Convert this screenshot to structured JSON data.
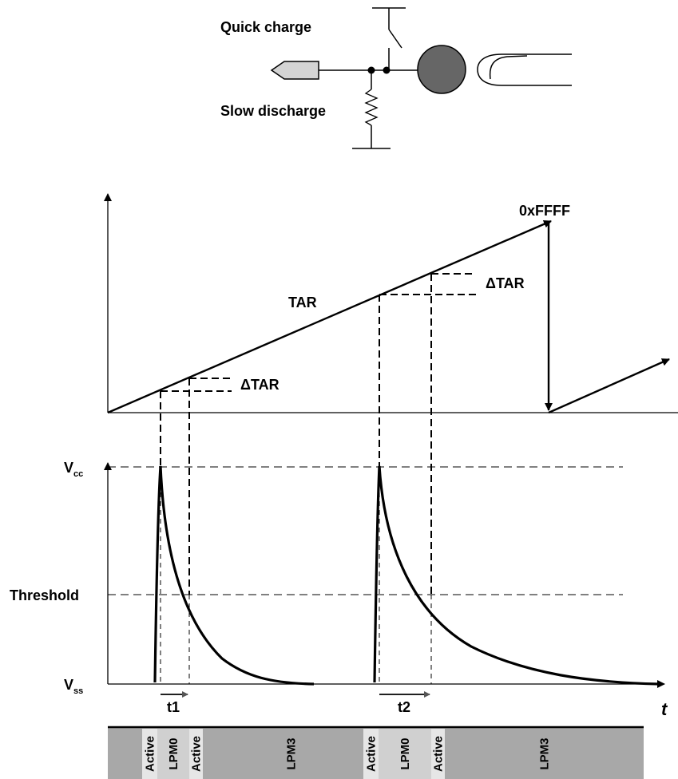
{
  "circuit": {
    "quick_charge_label": "Quick charge",
    "slow_discharge_label": "Slow discharge",
    "icons": [
      "sensor-pin-icon",
      "switch-icon",
      "resistor-icon",
      "touch-pad-icon",
      "finger-icon"
    ]
  },
  "timer_graph": {
    "counter_label": "TAR",
    "max_label": "0xFFFF",
    "delta_label_1": "ΔTAR",
    "delta_label_2": "ΔTAR"
  },
  "voltage_graph": {
    "vcc_main": "V",
    "vcc_sub": "cc",
    "vss_main": "V",
    "vss_sub": "ss",
    "threshold_label": "Threshold",
    "time_axis_label": "t",
    "interval_1": "t1",
    "interval_2": "t2"
  },
  "mode_bar": {
    "segments": [
      {
        "label": "Active",
        "fill": "#e6e6e6"
      },
      {
        "label": "LPM0",
        "fill": "#d0d0d0"
      },
      {
        "label": "Active",
        "fill": "#e6e6e6"
      },
      {
        "label": "LPM3",
        "fill": "#a8a8a8"
      },
      {
        "label": "Active",
        "fill": "#e6e6e6"
      },
      {
        "label": "LPM0",
        "fill": "#d0d0d0"
      },
      {
        "label": "Active",
        "fill": "#e6e6e6"
      },
      {
        "label": "LPM3",
        "fill": "#a8a8a8"
      }
    ]
  },
  "colors": {
    "pad": "#666666",
    "pin": "#d4d4d4",
    "bar_dark": "#a8a8a8"
  }
}
